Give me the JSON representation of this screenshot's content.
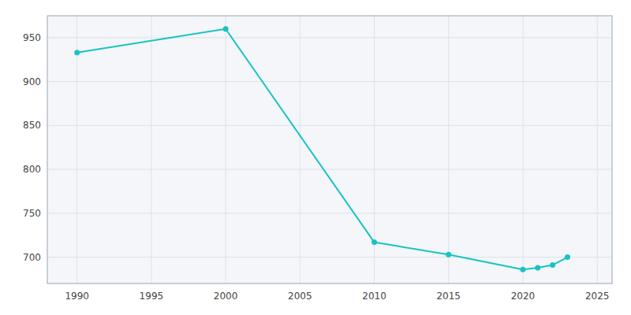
{
  "chart_data": {
    "type": "line",
    "x": [
      1990,
      2000,
      2010,
      2015,
      2020,
      2021,
      2022,
      2023
    ],
    "values": [
      933,
      960,
      717,
      703,
      686,
      688,
      691,
      700
    ],
    "color": "#17C3C3",
    "marker": "circle",
    "xlim": [
      1988,
      2026
    ],
    "ylim": [
      670,
      975
    ],
    "xticks": [
      1990,
      1995,
      2000,
      2005,
      2010,
      2015,
      2020,
      2025
    ],
    "yticks": [
      700,
      750,
      800,
      850,
      900,
      950
    ],
    "grid": true
  }
}
